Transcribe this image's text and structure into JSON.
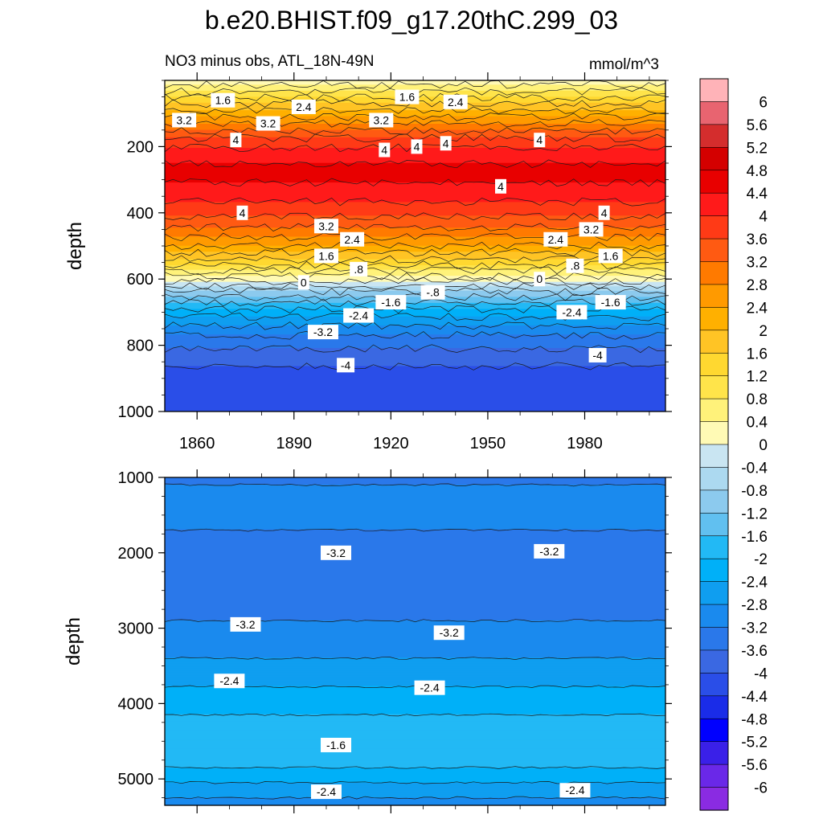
{
  "title": "b.e20.BHIST.f09_g17.20thC.299_03",
  "subtitle_left": "NO3 minus obs, ATL_18N-49N",
  "subtitle_right": "mmol/m^3",
  "colorbar": {
    "labels": [
      "6",
      "5.6",
      "5.2",
      "4.8",
      "4.4",
      "4",
      "3.6",
      "3.2",
      "2.8",
      "2.4",
      "2",
      "1.6",
      "1.2",
      "0.8",
      "0.4",
      "0",
      "-0.4",
      "-0.8",
      "-1.2",
      "-1.6",
      "-2",
      "-2.4",
      "-2.8",
      "-3.2",
      "-3.6",
      "-4",
      "-4.4",
      "-4.8",
      "-5.2",
      "-5.6",
      "-6"
    ],
    "colors": [
      "#ffb3b8",
      "#e86470",
      "#d42d2d",
      "#d40000",
      "#e80000",
      "#ff1a1a",
      "#ff3a16",
      "#ff5a12",
      "#ff7a00",
      "#ff9a00",
      "#ffb000",
      "#ffc425",
      "#ffd830",
      "#ffe44a",
      "#fff27a",
      "#fffab5",
      "#c9e5f2",
      "#acd9f0",
      "#8ccaee",
      "#61c0f0",
      "#22b9f5",
      "#00b0f8",
      "#0f9ef0",
      "#1a8aee",
      "#2a78ea",
      "#3a68e2",
      "#2a4ee8",
      "#1a2ce8",
      "#0000ff",
      "#3a20e8",
      "#6a28e8",
      "#8a2be2"
    ]
  },
  "chart_data": [
    {
      "type": "heatmap",
      "panel": "upper",
      "ylabel": "depth",
      "xlabel": "",
      "xlim": [
        1850,
        2005
      ],
      "ylim": [
        1000,
        0
      ],
      "x_ticks": [
        1860,
        1890,
        1920,
        1950,
        1980
      ],
      "y_ticks": [
        200,
        400,
        600,
        800,
        1000
      ],
      "profile": {
        "depth": [
          0,
          25,
          60,
          100,
          140,
          180,
          220,
          260,
          300,
          340,
          380,
          420,
          460,
          500,
          540,
          570,
          600,
          615,
          630,
          650,
          680,
          720,
          770,
          830,
          880,
          1000
        ],
        "value": [
          0.2,
          0.6,
          1.4,
          2.2,
          3.0,
          3.7,
          4.2,
          4.45,
          4.45,
          4.2,
          3.9,
          3.5,
          3.0,
          2.4,
          1.6,
          0.9,
          0.2,
          -0.2,
          -0.6,
          -1.1,
          -1.8,
          -2.5,
          -3.2,
          -3.8,
          -4.1,
          -4.2
        ]
      },
      "contour_labels": [
        {
          "text": "1.6",
          "x": 1868,
          "y": 60
        },
        {
          "text": "3.2",
          "x": 1856,
          "y": 120
        },
        {
          "text": "3.2",
          "x": 1882,
          "y": 130
        },
        {
          "text": "2.4",
          "x": 1893,
          "y": 80
        },
        {
          "text": "1.6",
          "x": 1925,
          "y": 50
        },
        {
          "text": "3.2",
          "x": 1917,
          "y": 120
        },
        {
          "text": "2.4",
          "x": 1940,
          "y": 65
        },
        {
          "text": "4",
          "x": 1872,
          "y": 180
        },
        {
          "text": "4",
          "x": 1918,
          "y": 210
        },
        {
          "text": "4",
          "x": 1928,
          "y": 200
        },
        {
          "text": "4",
          "x": 1937,
          "y": 190
        },
        {
          "text": "4",
          "x": 1954,
          "y": 320
        },
        {
          "text": "4",
          "x": 1966,
          "y": 180
        },
        {
          "text": "4",
          "x": 1874,
          "y": 400
        },
        {
          "text": "4",
          "x": 1986,
          "y": 400
        },
        {
          "text": "3.2",
          "x": 1900,
          "y": 440
        },
        {
          "text": "3.2",
          "x": 1982,
          "y": 450
        },
        {
          "text": "2.4",
          "x": 1908,
          "y": 480
        },
        {
          "text": "2.4",
          "x": 1971,
          "y": 480
        },
        {
          "text": "1.6",
          "x": 1900,
          "y": 530
        },
        {
          "text": "1.6",
          "x": 1988,
          "y": 530
        },
        {
          "text": ".8",
          "x": 1910,
          "y": 570
        },
        {
          "text": ".8",
          "x": 1977,
          "y": 560
        },
        {
          "text": "0",
          "x": 1893,
          "y": 610
        },
        {
          "text": "0",
          "x": 1966,
          "y": 600
        },
        {
          "text": "-.8",
          "x": 1933,
          "y": 640
        },
        {
          "text": "-1.6",
          "x": 1920,
          "y": 670
        },
        {
          "text": "-1.6",
          "x": 1988,
          "y": 670
        },
        {
          "text": "-2.4",
          "x": 1910,
          "y": 710
        },
        {
          "text": "-2.4",
          "x": 1976,
          "y": 700
        },
        {
          "text": "-3.2",
          "x": 1899,
          "y": 760
        },
        {
          "text": "-4",
          "x": 1906,
          "y": 860
        },
        {
          "text": "-4",
          "x": 1984,
          "y": 830
        }
      ]
    },
    {
      "type": "heatmap",
      "panel": "lower",
      "ylabel": "depth",
      "xlabel": "",
      "xlim": [
        1850,
        2005
      ],
      "ylim": [
        5350,
        1000
      ],
      "y_ticks": [
        1000,
        2000,
        3000,
        4000,
        5000
      ],
      "profile": {
        "depth": [
          1000,
          1100,
          1300,
          1500,
          1700,
          2000,
          2300,
          2600,
          2900,
          3300,
          3700,
          4000,
          4300,
          4600,
          4850,
          5050,
          5200,
          5350
        ],
        "value": [
          -3.5,
          -3.2,
          -2.9,
          -3.0,
          -3.2,
          -3.4,
          -3.45,
          -3.4,
          -3.2,
          -2.9,
          -2.5,
          -2.1,
          -1.9,
          -1.8,
          -2.0,
          -2.4,
          -2.7,
          -3.0
        ]
      },
      "contour_labels": [
        {
          "text": "-3.2",
          "x": 1903,
          "y": 2000
        },
        {
          "text": "-3.2",
          "x": 1969,
          "y": 1980
        },
        {
          "text": "-3.2",
          "x": 1875,
          "y": 2950
        },
        {
          "text": "-3.2",
          "x": 1938,
          "y": 3060
        },
        {
          "text": "-2.4",
          "x": 1870,
          "y": 3700
        },
        {
          "text": "-2.4",
          "x": 1932,
          "y": 3790
        },
        {
          "text": "-1.6",
          "x": 1903,
          "y": 4550
        },
        {
          "text": "-2.4",
          "x": 1900,
          "y": 5170
        },
        {
          "text": "-2.4",
          "x": 1977,
          "y": 5150
        }
      ]
    }
  ]
}
